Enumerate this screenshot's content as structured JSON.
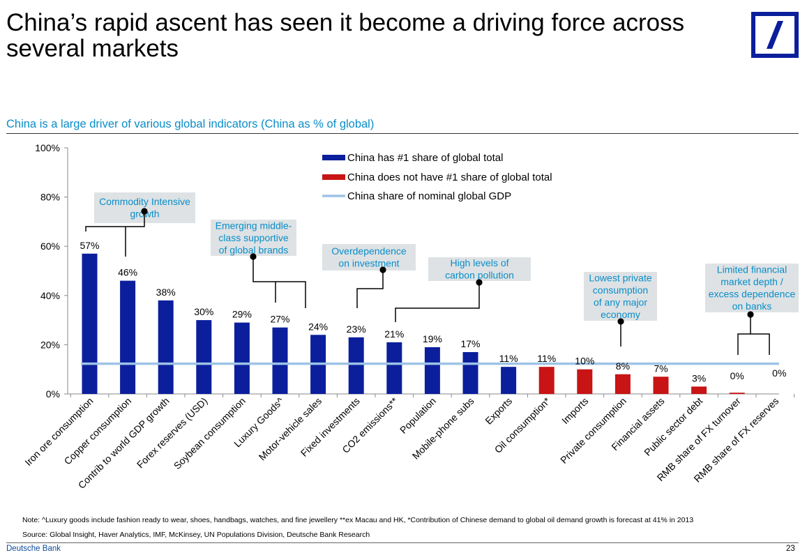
{
  "slide": {
    "title": "China’s rapid ascent has seen it become a driving force across several markets",
    "footer_brand": "Deutsche Bank",
    "page_number": "23",
    "note": "Note: ^Luxury goods include fashion ready to wear, shoes, handbags, watches, and fine jewellery **ex Macau and HK, *Contribution of Chinese demand to global oil demand growth is forecast at 41% in 2013",
    "source": "Source: Global Insight, Haver Analytics, IMF, McKinsey, UN Populations Division, Deutsche Bank Research"
  },
  "colors": {
    "primary_bar": "#0b1f9c",
    "secondary_bar": "#c81414",
    "gdp_line": "#9ec3e6",
    "accent_text": "#0a8dc8",
    "callout_bg": "#dee2e4",
    "logo_blue": "#0b1f9c"
  },
  "chart_data": {
    "type": "bar",
    "title": "China is a large driver of various global indicators (China as % of global)",
    "xlabel": "",
    "ylabel": "",
    "ylim": [
      0,
      100
    ],
    "yticks": [
      0,
      20,
      40,
      60,
      80,
      100
    ],
    "ytick_labels": [
      "0%",
      "20%",
      "40%",
      "60%",
      "80%",
      "100%"
    ],
    "categories": [
      "Iron ore consumption",
      "Copper consumption",
      "Contrib to world GDP growth",
      "Forex reserves (USD)",
      "Soybean consumption",
      "Luxury Goods^",
      "Motor-vehicle sales",
      "Fixed investments",
      "CO2 emissions**",
      "Population",
      "Mobile-phone subs",
      "Exports",
      "Oil consumption*",
      "Imports",
      "Private consumption",
      "Financial assets",
      "Public sector debt",
      "RMB share of FX turnover",
      "RMB share of FX reserves"
    ],
    "values": [
      57,
      46,
      38,
      30,
      29,
      27,
      24,
      23,
      21,
      19,
      17,
      11,
      11,
      10,
      8,
      7,
      3,
      0.5,
      0
    ],
    "value_labels": [
      "57%",
      "46%",
      "38%",
      "30%",
      "29%",
      "27%",
      "24%",
      "23%",
      "21%",
      "19%",
      "17%",
      "11%",
      "11%",
      "10%",
      "8%",
      "7%",
      "3%",
      "0%",
      "0%"
    ],
    "series_index": [
      0,
      0,
      0,
      0,
      0,
      0,
      0,
      0,
      0,
      0,
      0,
      0,
      1,
      1,
      1,
      1,
      1,
      1,
      1
    ],
    "legend": [
      {
        "name": "China has #1 share of global total",
        "type": "bar"
      },
      {
        "name": "China does not have #1 share of global total",
        "type": "bar"
      },
      {
        "name": "China share of nominal global GDP",
        "type": "line"
      }
    ],
    "reference_line": {
      "name": "China share of nominal global GDP",
      "value": 12.3
    },
    "annotations": [
      {
        "id": "commodity",
        "lines": [
          "Commodity Intensive",
          "growth"
        ]
      },
      {
        "id": "middle-class",
        "lines": [
          "Emerging middle-",
          "class supportive",
          "of global brands"
        ]
      },
      {
        "id": "investment",
        "lines": [
          "Overdependence",
          "on investment"
        ]
      },
      {
        "id": "carbon",
        "lines": [
          "High levels of",
          "carbon pollution"
        ]
      },
      {
        "id": "private-consumption",
        "lines": [
          "Lowest private",
          "consumption",
          "of any major",
          "economy"
        ]
      },
      {
        "id": "financial-market",
        "lines": [
          "Limited financial",
          "market depth /",
          "excess dependence",
          "on banks"
        ]
      }
    ]
  }
}
